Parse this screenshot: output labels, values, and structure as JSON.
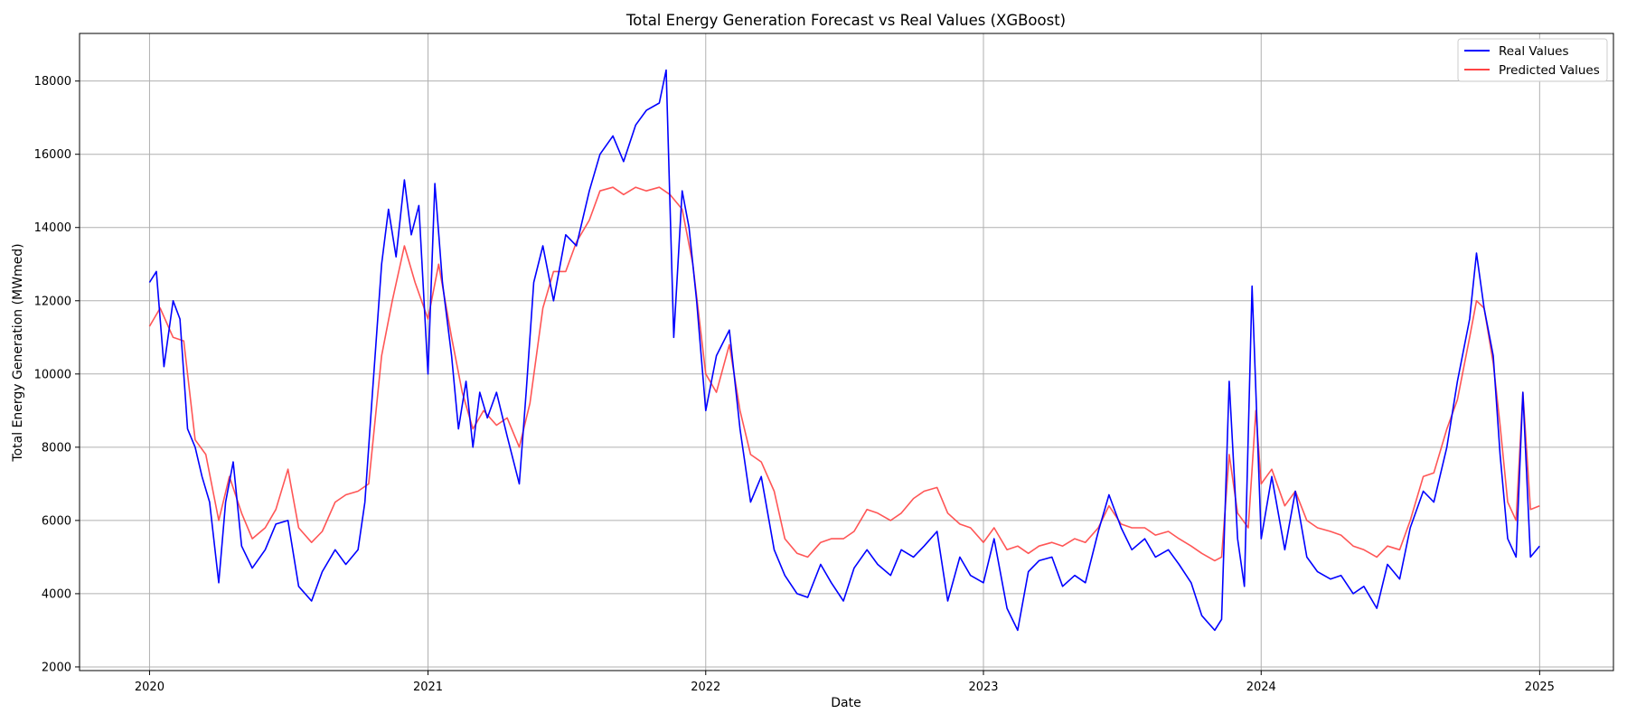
{
  "chart_data": {
    "type": "line",
    "title": "Total Energy Generation Forecast vs Real Values (XGBoost)",
    "xlabel": "Date",
    "ylabel": "Total Energy Generation (MWmed)",
    "xlim": [
      "2019-10-01",
      "2025-04-08"
    ],
    "ylim": [
      1900,
      19300
    ],
    "x_ticks": [
      "2020-01-01",
      "2021-01-01",
      "2022-01-01",
      "2023-01-01",
      "2024-01-01",
      "2025-01-01"
    ],
    "x_tick_labels": [
      "2020",
      "2021",
      "2022",
      "2023",
      "2024",
      "2025"
    ],
    "y_ticks": [
      2000,
      4000,
      6000,
      8000,
      10000,
      12000,
      14000,
      16000,
      18000
    ],
    "y_tick_labels": [
      "2000",
      "4000",
      "6000",
      "8000",
      "10000",
      "12000",
      "14000",
      "16000",
      "18000"
    ],
    "grid": true,
    "legend_position": "top-right",
    "series": [
      {
        "name": "Real Values",
        "color": "#0000ff",
        "points": [
          [
            "2020-01-01",
            12500
          ],
          [
            "2020-01-10",
            12800
          ],
          [
            "2020-01-20",
            10200
          ],
          [
            "2020-02-01",
            12000
          ],
          [
            "2020-02-10",
            11500
          ],
          [
            "2020-02-20",
            8500
          ],
          [
            "2020-03-01",
            8000
          ],
          [
            "2020-03-10",
            7200
          ],
          [
            "2020-03-20",
            6500
          ],
          [
            "2020-04-01",
            4300
          ],
          [
            "2020-04-10",
            6500
          ],
          [
            "2020-04-20",
            7600
          ],
          [
            "2020-05-01",
            5300
          ],
          [
            "2020-05-15",
            4700
          ],
          [
            "2020-06-01",
            5200
          ],
          [
            "2020-06-15",
            5900
          ],
          [
            "2020-07-01",
            6000
          ],
          [
            "2020-07-15",
            4200
          ],
          [
            "2020-08-01",
            3800
          ],
          [
            "2020-08-15",
            4600
          ],
          [
            "2020-09-01",
            5200
          ],
          [
            "2020-09-15",
            4800
          ],
          [
            "2020-10-01",
            5200
          ],
          [
            "2020-10-10",
            6500
          ],
          [
            "2020-10-20",
            9500
          ],
          [
            "2020-11-01",
            13000
          ],
          [
            "2020-11-10",
            14500
          ],
          [
            "2020-11-20",
            13200
          ],
          [
            "2020-12-01",
            15300
          ],
          [
            "2020-12-10",
            13800
          ],
          [
            "2020-12-20",
            14600
          ],
          [
            "2021-01-01",
            10000
          ],
          [
            "2021-01-10",
            15200
          ],
          [
            "2021-01-20",
            12500
          ],
          [
            "2021-02-01",
            10500
          ],
          [
            "2021-02-10",
            8500
          ],
          [
            "2021-02-20",
            9800
          ],
          [
            "2021-03-01",
            8000
          ],
          [
            "2021-03-10",
            9500
          ],
          [
            "2021-03-20",
            8800
          ],
          [
            "2021-04-01",
            9500
          ],
          [
            "2021-04-15",
            8300
          ],
          [
            "2021-05-01",
            7000
          ],
          [
            "2021-05-10",
            9500
          ],
          [
            "2021-05-20",
            12500
          ],
          [
            "2021-06-01",
            13500
          ],
          [
            "2021-06-15",
            12000
          ],
          [
            "2021-07-01",
            13800
          ],
          [
            "2021-07-15",
            13500
          ],
          [
            "2021-08-01",
            15000
          ],
          [
            "2021-08-15",
            16000
          ],
          [
            "2021-09-01",
            16500
          ],
          [
            "2021-09-15",
            15800
          ],
          [
            "2021-10-01",
            16800
          ],
          [
            "2021-10-15",
            17200
          ],
          [
            "2021-11-01",
            17400
          ],
          [
            "2021-11-10",
            18300
          ],
          [
            "2021-11-20",
            11000
          ],
          [
            "2021-12-01",
            15000
          ],
          [
            "2021-12-10",
            14000
          ],
          [
            "2021-12-20",
            12000
          ],
          [
            "2022-01-01",
            9000
          ],
          [
            "2022-01-15",
            10500
          ],
          [
            "2022-02-01",
            11200
          ],
          [
            "2022-02-15",
            8500
          ],
          [
            "2022-03-01",
            6500
          ],
          [
            "2022-03-15",
            7200
          ],
          [
            "2022-04-01",
            5200
          ],
          [
            "2022-04-15",
            4500
          ],
          [
            "2022-05-01",
            4000
          ],
          [
            "2022-05-15",
            3900
          ],
          [
            "2022-06-01",
            4800
          ],
          [
            "2022-06-15",
            4300
          ],
          [
            "2022-07-01",
            3800
          ],
          [
            "2022-07-15",
            4700
          ],
          [
            "2022-08-01",
            5200
          ],
          [
            "2022-08-15",
            4800
          ],
          [
            "2022-09-01",
            4500
          ],
          [
            "2022-09-15",
            5200
          ],
          [
            "2022-10-01",
            5000
          ],
          [
            "2022-10-15",
            5300
          ],
          [
            "2022-11-01",
            5700
          ],
          [
            "2022-11-15",
            3800
          ],
          [
            "2022-12-01",
            5000
          ],
          [
            "2022-12-15",
            4500
          ],
          [
            "2023-01-01",
            4300
          ],
          [
            "2023-01-15",
            5500
          ],
          [
            "2023-02-01",
            3600
          ],
          [
            "2023-02-15",
            3000
          ],
          [
            "2023-03-01",
            4600
          ],
          [
            "2023-03-15",
            4900
          ],
          [
            "2023-04-01",
            5000
          ],
          [
            "2023-04-15",
            4200
          ],
          [
            "2023-05-01",
            4500
          ],
          [
            "2023-05-15",
            4300
          ],
          [
            "2023-06-01",
            5700
          ],
          [
            "2023-06-15",
            6700
          ],
          [
            "2023-07-01",
            5800
          ],
          [
            "2023-07-15",
            5200
          ],
          [
            "2023-08-01",
            5500
          ],
          [
            "2023-08-15",
            5000
          ],
          [
            "2023-09-01",
            5200
          ],
          [
            "2023-09-15",
            4800
          ],
          [
            "2023-10-01",
            4300
          ],
          [
            "2023-10-15",
            3400
          ],
          [
            "2023-11-01",
            3000
          ],
          [
            "2023-11-10",
            3300
          ],
          [
            "2023-11-20",
            9800
          ],
          [
            "2023-12-01",
            5500
          ],
          [
            "2023-12-10",
            4200
          ],
          [
            "2023-12-20",
            12400
          ],
          [
            "2024-01-01",
            5500
          ],
          [
            "2024-01-15",
            7200
          ],
          [
            "2024-02-01",
            5200
          ],
          [
            "2024-02-15",
            6800
          ],
          [
            "2024-03-01",
            5000
          ],
          [
            "2024-03-15",
            4600
          ],
          [
            "2024-04-01",
            4400
          ],
          [
            "2024-04-15",
            4500
          ],
          [
            "2024-05-01",
            4000
          ],
          [
            "2024-05-15",
            4200
          ],
          [
            "2024-06-01",
            3600
          ],
          [
            "2024-06-15",
            4800
          ],
          [
            "2024-07-01",
            4400
          ],
          [
            "2024-07-15",
            5800
          ],
          [
            "2024-08-01",
            6800
          ],
          [
            "2024-08-15",
            6500
          ],
          [
            "2024-09-01",
            8000
          ],
          [
            "2024-09-15",
            9800
          ],
          [
            "2024-10-01",
            11500
          ],
          [
            "2024-10-10",
            13300
          ],
          [
            "2024-10-20",
            11800
          ],
          [
            "2024-11-01",
            10500
          ],
          [
            "2024-11-10",
            7800
          ],
          [
            "2024-11-20",
            5500
          ],
          [
            "2024-12-01",
            5000
          ],
          [
            "2024-12-10",
            9500
          ],
          [
            "2024-12-20",
            5000
          ],
          [
            "2025-01-01",
            5300
          ]
        ]
      },
      {
        "name": "Predicted Values",
        "color": "#ff4444",
        "points": [
          [
            "2020-01-01",
            11300
          ],
          [
            "2020-01-15",
            11800
          ],
          [
            "2020-02-01",
            11000
          ],
          [
            "2020-02-15",
            10900
          ],
          [
            "2020-03-01",
            8200
          ],
          [
            "2020-03-15",
            7800
          ],
          [
            "2020-04-01",
            6000
          ],
          [
            "2020-04-15",
            7200
          ],
          [
            "2020-05-01",
            6200
          ],
          [
            "2020-05-15",
            5500
          ],
          [
            "2020-06-01",
            5800
          ],
          [
            "2020-06-15",
            6300
          ],
          [
            "2020-07-01",
            7400
          ],
          [
            "2020-07-15",
            5800
          ],
          [
            "2020-08-01",
            5400
          ],
          [
            "2020-08-15",
            5700
          ],
          [
            "2020-09-01",
            6500
          ],
          [
            "2020-09-15",
            6700
          ],
          [
            "2020-10-01",
            6800
          ],
          [
            "2020-10-15",
            7000
          ],
          [
            "2020-11-01",
            10500
          ],
          [
            "2020-11-15",
            12000
          ],
          [
            "2020-12-01",
            13500
          ],
          [
            "2020-12-15",
            12500
          ],
          [
            "2021-01-01",
            11500
          ],
          [
            "2021-01-15",
            13000
          ],
          [
            "2021-02-01",
            11000
          ],
          [
            "2021-02-15",
            9500
          ],
          [
            "2021-03-01",
            8500
          ],
          [
            "2021-03-15",
            9000
          ],
          [
            "2021-04-01",
            8600
          ],
          [
            "2021-04-15",
            8800
          ],
          [
            "2021-05-01",
            8000
          ],
          [
            "2021-05-15",
            9200
          ],
          [
            "2021-06-01",
            11800
          ],
          [
            "2021-06-15",
            12800
          ],
          [
            "2021-07-01",
            12800
          ],
          [
            "2021-07-15",
            13600
          ],
          [
            "2021-08-01",
            14200
          ],
          [
            "2021-08-15",
            15000
          ],
          [
            "2021-09-01",
            15100
          ],
          [
            "2021-09-15",
            14900
          ],
          [
            "2021-10-01",
            15100
          ],
          [
            "2021-10-15",
            15000
          ],
          [
            "2021-11-01",
            15100
          ],
          [
            "2021-11-15",
            14900
          ],
          [
            "2021-12-01",
            14500
          ],
          [
            "2021-12-15",
            13000
          ],
          [
            "2022-01-01",
            10000
          ],
          [
            "2022-01-15",
            9500
          ],
          [
            "2022-02-01",
            10800
          ],
          [
            "2022-02-15",
            9000
          ],
          [
            "2022-03-01",
            7800
          ],
          [
            "2022-03-15",
            7600
          ],
          [
            "2022-04-01",
            6800
          ],
          [
            "2022-04-15",
            5500
          ],
          [
            "2022-05-01",
            5100
          ],
          [
            "2022-05-15",
            5000
          ],
          [
            "2022-06-01",
            5400
          ],
          [
            "2022-06-15",
            5500
          ],
          [
            "2022-07-01",
            5500
          ],
          [
            "2022-07-15",
            5700
          ],
          [
            "2022-08-01",
            6300
          ],
          [
            "2022-08-15",
            6200
          ],
          [
            "2022-09-01",
            6000
          ],
          [
            "2022-09-15",
            6200
          ],
          [
            "2022-10-01",
            6600
          ],
          [
            "2022-10-15",
            6800
          ],
          [
            "2022-11-01",
            6900
          ],
          [
            "2022-11-15",
            6200
          ],
          [
            "2022-12-01",
            5900
          ],
          [
            "2022-12-15",
            5800
          ],
          [
            "2023-01-01",
            5400
          ],
          [
            "2023-01-15",
            5800
          ],
          [
            "2023-02-01",
            5200
          ],
          [
            "2023-02-15",
            5300
          ],
          [
            "2023-03-01",
            5100
          ],
          [
            "2023-03-15",
            5300
          ],
          [
            "2023-04-01",
            5400
          ],
          [
            "2023-04-15",
            5300
          ],
          [
            "2023-05-01",
            5500
          ],
          [
            "2023-05-15",
            5400
          ],
          [
            "2023-06-01",
            5800
          ],
          [
            "2023-06-15",
            6400
          ],
          [
            "2023-07-01",
            5900
          ],
          [
            "2023-07-15",
            5800
          ],
          [
            "2023-08-01",
            5800
          ],
          [
            "2023-08-15",
            5600
          ],
          [
            "2023-09-01",
            5700
          ],
          [
            "2023-09-15",
            5500
          ],
          [
            "2023-10-01",
            5300
          ],
          [
            "2023-10-15",
            5100
          ],
          [
            "2023-11-01",
            4900
          ],
          [
            "2023-11-10",
            5000
          ],
          [
            "2023-11-20",
            7800
          ],
          [
            "2023-12-01",
            6200
          ],
          [
            "2023-12-15",
            5800
          ],
          [
            "2023-12-25",
            9000
          ],
          [
            "2024-01-01",
            7000
          ],
          [
            "2024-01-15",
            7400
          ],
          [
            "2024-02-01",
            6400
          ],
          [
            "2024-02-15",
            6800
          ],
          [
            "2024-03-01",
            6000
          ],
          [
            "2024-03-15",
            5800
          ],
          [
            "2024-04-01",
            5700
          ],
          [
            "2024-04-15",
            5600
          ],
          [
            "2024-05-01",
            5300
          ],
          [
            "2024-05-15",
            5200
          ],
          [
            "2024-06-01",
            5000
          ],
          [
            "2024-06-15",
            5300
          ],
          [
            "2024-07-01",
            5200
          ],
          [
            "2024-07-15",
            6000
          ],
          [
            "2024-08-01",
            7200
          ],
          [
            "2024-08-15",
            7300
          ],
          [
            "2024-09-01",
            8500
          ],
          [
            "2024-09-15",
            9300
          ],
          [
            "2024-10-01",
            11000
          ],
          [
            "2024-10-10",
            12000
          ],
          [
            "2024-10-20",
            11800
          ],
          [
            "2024-11-01",
            10300
          ],
          [
            "2024-11-10",
            8600
          ],
          [
            "2024-11-20",
            6500
          ],
          [
            "2024-12-01",
            6000
          ],
          [
            "2024-12-10",
            9500
          ],
          [
            "2024-12-20",
            6300
          ],
          [
            "2025-01-01",
            6400
          ]
        ]
      }
    ]
  }
}
